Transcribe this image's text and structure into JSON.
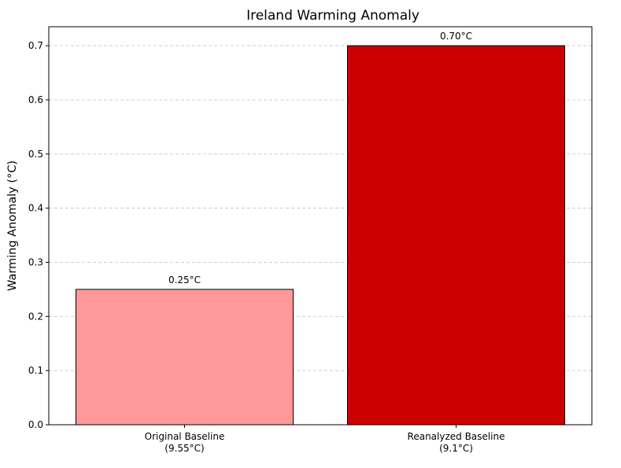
{
  "chart_data": {
    "type": "bar",
    "title": "Ireland Warming Anomaly",
    "xlabel": "",
    "ylabel": "Warming Anomaly (°C)",
    "categories": [
      [
        "Original Baseline",
        "(9.55°C)"
      ],
      [
        "Reanalyzed Baseline",
        "(9.1°C)"
      ]
    ],
    "values": [
      0.25,
      0.7
    ],
    "value_labels": [
      "0.25°C",
      "0.70°C"
    ],
    "bar_colors": [
      "#ff9999",
      "#cc0000"
    ],
    "edge_color": "#000000",
    "ylim": [
      0,
      0.735
    ],
    "yticks": [
      0.0,
      0.1,
      0.2,
      0.3,
      0.4,
      0.5,
      0.6,
      0.7
    ],
    "ytick_labels": [
      "0.0",
      "0.1",
      "0.2",
      "0.3",
      "0.4",
      "0.5",
      "0.6",
      "0.7"
    ],
    "grid": "y-dashed",
    "legend": "none"
  }
}
